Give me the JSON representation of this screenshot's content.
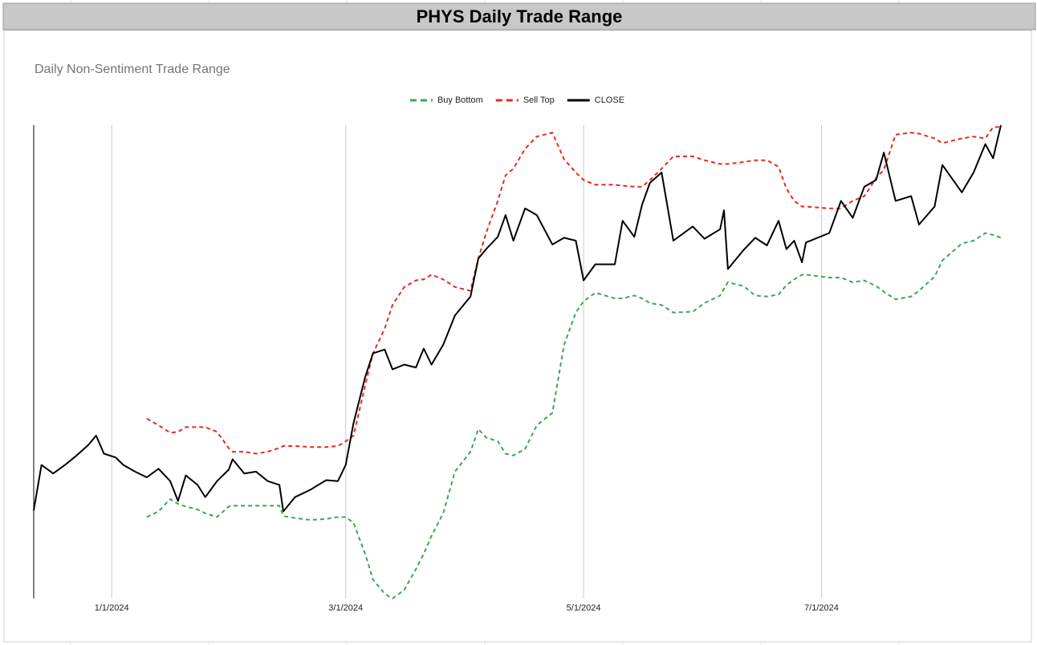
{
  "page_title": "PHYS Daily Trade Range",
  "chart_data": {
    "type": "line",
    "title": "Daily Non-Sentiment Trade Range",
    "x": [
      "2023-12-12",
      "2023-12-14",
      "2023-12-17",
      "2023-12-20",
      "2023-12-23",
      "2023-12-26",
      "2023-12-28",
      "2023-12-30",
      "2024-01-02",
      "2024-01-04",
      "2024-01-07",
      "2024-01-10",
      "2024-01-13",
      "2024-01-16",
      "2024-01-18",
      "2024-01-20",
      "2024-01-23",
      "2024-01-25",
      "2024-01-28",
      "2024-01-31",
      "2024-02-01",
      "2024-02-04",
      "2024-02-07",
      "2024-02-10",
      "2024-02-13",
      "2024-02-14",
      "2024-02-17",
      "2024-02-21",
      "2024-02-25",
      "2024-02-28",
      "2024-03-01",
      "2024-03-03",
      "2024-03-06",
      "2024-03-08",
      "2024-03-11",
      "2024-03-13",
      "2024-03-16",
      "2024-03-19",
      "2024-03-21",
      "2024-03-23",
      "2024-03-26",
      "2024-03-29",
      "2024-04-02",
      "2024-04-04",
      "2024-04-06",
      "2024-04-09",
      "2024-04-11",
      "2024-04-13",
      "2024-04-16",
      "2024-04-19",
      "2024-04-23",
      "2024-04-26",
      "2024-04-29",
      "2024-05-01",
      "2024-05-04",
      "2024-05-09",
      "2024-05-11",
      "2024-05-14",
      "2024-05-16",
      "2024-05-18",
      "2024-05-21",
      "2024-05-24",
      "2024-05-29",
      "2024-06-01",
      "2024-06-05",
      "2024-06-06",
      "2024-06-07",
      "2024-06-11",
      "2024-06-14",
      "2024-06-17",
      "2024-06-20",
      "2024-06-22",
      "2024-06-24",
      "2024-06-26",
      "2024-06-27",
      "2024-07-03",
      "2024-07-06",
      "2024-07-09",
      "2024-07-12",
      "2024-07-15",
      "2024-07-17",
      "2024-07-20",
      "2024-07-24",
      "2024-07-26",
      "2024-07-30",
      "2024-08-01",
      "2024-08-06",
      "2024-08-09",
      "2024-08-12",
      "2024-08-14",
      "2024-08-16"
    ],
    "series": [
      {
        "name": "Buy Bottom",
        "color": "#3aa853",
        "dashed": true,
        "values": [
          null,
          null,
          null,
          null,
          null,
          null,
          null,
          null,
          null,
          null,
          null,
          15.36,
          15.42,
          15.55,
          15.5,
          15.47,
          15.44,
          15.4,
          15.36,
          15.47,
          15.48,
          15.48,
          15.48,
          15.48,
          15.48,
          15.37,
          15.35,
          15.33,
          15.34,
          15.36,
          15.36,
          15.3,
          14.97,
          14.7,
          14.55,
          14.5,
          14.59,
          14.81,
          14.97,
          15.16,
          15.4,
          15.84,
          16.05,
          16.29,
          16.2,
          16.16,
          16.03,
          16.01,
          16.08,
          16.33,
          16.46,
          17.18,
          17.52,
          17.64,
          17.73,
          17.67,
          17.67,
          17.7,
          17.67,
          17.62,
          17.6,
          17.52,
          17.53,
          17.62,
          17.7,
          17.77,
          17.84,
          17.8,
          17.7,
          17.69,
          17.71,
          17.81,
          17.87,
          17.92,
          17.92,
          17.89,
          17.89,
          17.84,
          17.86,
          17.8,
          17.74,
          17.66,
          17.69,
          17.75,
          17.9,
          18.07,
          18.25,
          18.28,
          18.36,
          18.34,
          18.31
        ]
      },
      {
        "name": "Sell Top",
        "color": "#e8291f",
        "dashed": true,
        "values": [
          null,
          null,
          null,
          null,
          null,
          null,
          null,
          null,
          null,
          null,
          null,
          16.4,
          16.33,
          16.25,
          16.26,
          16.31,
          16.31,
          16.31,
          16.26,
          16.09,
          16.05,
          16.05,
          16.03,
          16.05,
          16.09,
          16.11,
          16.11,
          16.1,
          16.1,
          16.11,
          16.16,
          16.22,
          16.75,
          17.09,
          17.35,
          17.6,
          17.79,
          17.86,
          17.87,
          17.92,
          17.87,
          17.79,
          17.75,
          18.09,
          18.36,
          18.7,
          18.97,
          19.04,
          19.25,
          19.38,
          19.42,
          19.14,
          19.0,
          18.92,
          18.87,
          18.87,
          18.86,
          18.85,
          18.85,
          18.92,
          19.04,
          19.17,
          19.17,
          19.13,
          19.09,
          19.09,
          19.09,
          19.11,
          19.13,
          19.13,
          19.06,
          18.83,
          18.7,
          18.64,
          18.64,
          18.62,
          18.62,
          18.7,
          18.75,
          18.94,
          19.03,
          19.4,
          19.42,
          19.41,
          19.36,
          19.31,
          19.36,
          19.38,
          19.36,
          19.48,
          19.48
        ]
      },
      {
        "name": "CLOSE",
        "color": "#000000",
        "dashed": false,
        "values": [
          15.43,
          15.91,
          15.82,
          15.91,
          16.01,
          16.12,
          16.22,
          16.03,
          15.99,
          15.91,
          15.84,
          15.78,
          15.87,
          15.74,
          15.53,
          15.8,
          15.7,
          15.57,
          15.74,
          15.86,
          15.97,
          15.82,
          15.84,
          15.74,
          15.7,
          15.42,
          15.57,
          15.65,
          15.75,
          15.74,
          15.91,
          16.35,
          16.84,
          17.09,
          17.13,
          16.92,
          16.97,
          16.94,
          17.14,
          16.97,
          17.18,
          17.49,
          17.69,
          18.09,
          18.19,
          18.32,
          18.55,
          18.28,
          18.62,
          18.55,
          18.24,
          18.31,
          18.28,
          17.86,
          18.03,
          18.03,
          18.49,
          18.32,
          18.66,
          18.89,
          19.0,
          18.28,
          18.43,
          18.3,
          18.4,
          18.6,
          17.98,
          18.18,
          18.31,
          18.23,
          18.49,
          18.19,
          18.28,
          18.05,
          18.26,
          18.36,
          18.7,
          18.52,
          18.85,
          18.92,
          19.21,
          18.7,
          18.75,
          18.45,
          18.64,
          19.08,
          18.79,
          19.0,
          19.3,
          19.15,
          19.5
        ]
      }
    ],
    "xlim": [
      "2023-12-12",
      "2024-08-16"
    ],
    "xticks": [
      {
        "value": "2024-01-01",
        "label": "1/1/2024"
      },
      {
        "value": "2024-03-01",
        "label": "3/1/2024"
      },
      {
        "value": "2024-05-01",
        "label": "5/1/2024"
      },
      {
        "value": "2024-07-01",
        "label": "7/1/2024"
      }
    ],
    "ylim": [
      14.5,
      19.5
    ],
    "grid": "x",
    "legend": "top"
  }
}
